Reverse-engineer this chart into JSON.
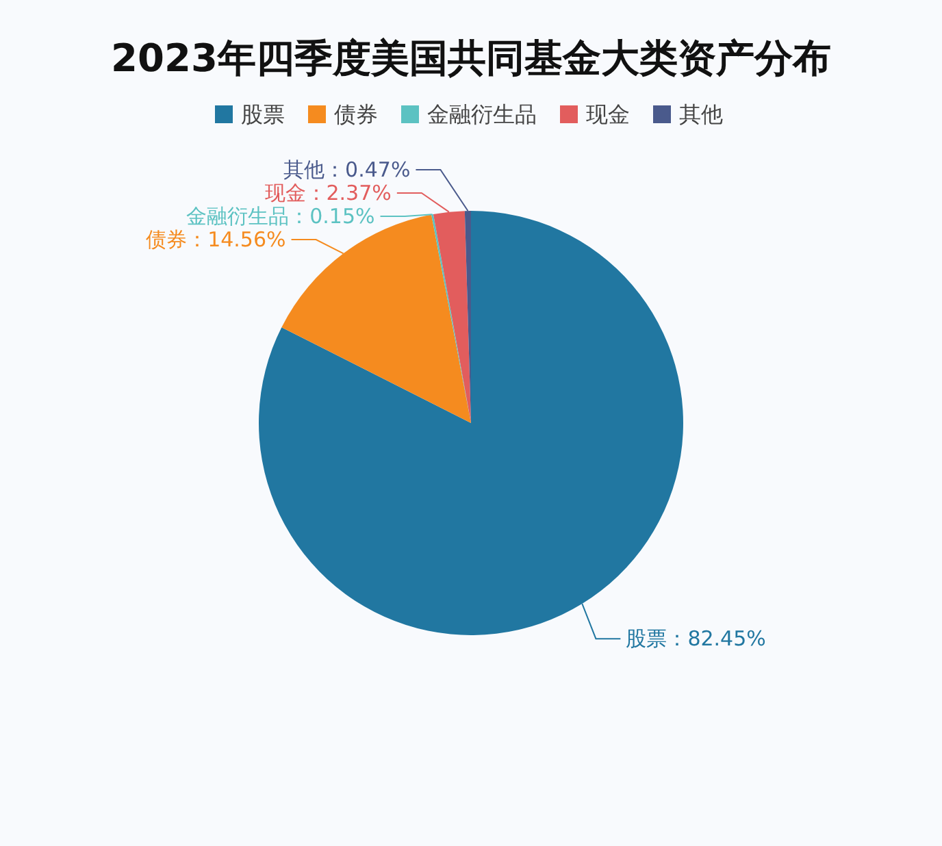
{
  "chart_data": {
    "type": "pie",
    "title": "2023年四季度美国共同基金大类资产分布",
    "categories": [
      "股票",
      "债券",
      "金融衍生品",
      "现金",
      "其他"
    ],
    "values": [
      82.45,
      14.56,
      0.15,
      2.37,
      0.47
    ],
    "colors": [
      "#2177a1",
      "#f58b1f",
      "#5cc2c2",
      "#e25d5d",
      "#4a5a8c"
    ],
    "value_labels": [
      "：82.45%",
      "：14.56%",
      "：0.15%",
      "：2.37%",
      "：0.47%"
    ],
    "legend": "top"
  }
}
